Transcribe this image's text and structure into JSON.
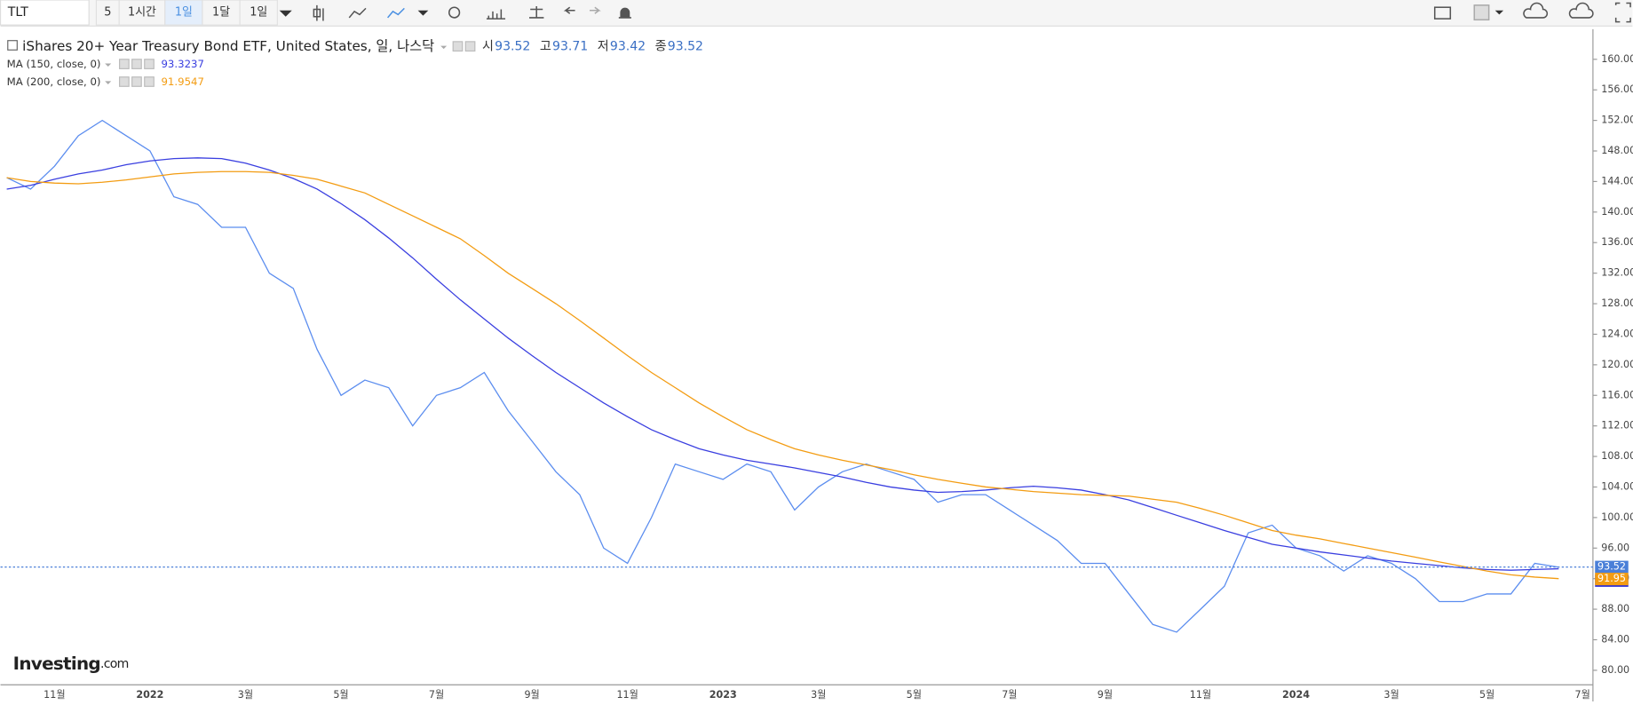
{
  "toolbar": {
    "symbol": "TLT",
    "intervals": [
      "5",
      "1시간",
      "1일",
      "1달",
      "1일"
    ],
    "active_interval": 2
  },
  "logo": {
    "name": "Investing",
    "suffix": ".com"
  },
  "chart_data": {
    "type": "line",
    "title": "iShares 20+ Year Treasury Bond ETF, United States, 일, 나스닥",
    "ohlc": [
      {
        "label": "시",
        "value": 93.52
      },
      {
        "label": "고",
        "value": 93.71
      },
      {
        "label": "저",
        "value": 93.42
      },
      {
        "label": "종",
        "value": 93.52
      }
    ],
    "categories": [
      null,
      null,
      "11월",
      null,
      null,
      null,
      "2022",
      null,
      null,
      null,
      "3월",
      null,
      null,
      null,
      "5월",
      null,
      null,
      null,
      "7월",
      null,
      null,
      null,
      "9월",
      null,
      null,
      null,
      "11월",
      null,
      null,
      null,
      "2023",
      null,
      null,
      null,
      "3월",
      null,
      null,
      null,
      "5월",
      null,
      null,
      null,
      "7월",
      null,
      null,
      null,
      "9월",
      null,
      null,
      null,
      "11월",
      null,
      null,
      null,
      "2024",
      null,
      null,
      null,
      "3월",
      null,
      null,
      null,
      "5월",
      null,
      null,
      null,
      "7월"
    ],
    "series": [
      {
        "color": "#5b8def",
        "values": [
          144.5,
          143,
          146,
          150,
          152,
          150,
          148,
          142,
          141,
          138,
          138,
          132,
          130,
          122,
          116,
          118,
          117,
          112,
          116,
          117,
          119,
          114,
          110,
          106,
          103,
          96,
          94,
          100,
          107,
          106,
          105,
          107,
          106,
          101,
          104,
          106,
          107,
          106,
          105,
          102,
          103,
          103,
          101,
          99,
          97,
          94,
          94,
          90,
          86,
          85,
          88,
          91,
          98,
          99,
          96,
          95,
          93,
          95,
          94,
          92,
          89,
          89,
          90,
          90,
          94,
          93.5,
          null
        ]
      },
      {
        "name": "MA (150, close, 0)",
        "color": "#3a3fe0",
        "last": 93.3237,
        "values": [
          143,
          143.5,
          144.3,
          145,
          145.5,
          146.2,
          146.7,
          147,
          147.1,
          147,
          146.4,
          145.5,
          144.4,
          143,
          141.1,
          139,
          136.6,
          134,
          131.2,
          128.5,
          126,
          123.5,
          121.2,
          119,
          117,
          115,
          113.2,
          111.5,
          110.2,
          109,
          108.2,
          107.5,
          107,
          106.5,
          105.9,
          105.3,
          104.6,
          104,
          103.6,
          103.3,
          103.4,
          103.6,
          103.9,
          104.1,
          103.9,
          103.6,
          103,
          102.3,
          101.3,
          100.3,
          99.3,
          98.3,
          97.4,
          96.5,
          96,
          95.5,
          95.1,
          94.7,
          94.3,
          94,
          93.7,
          93.4,
          93.2,
          93.1,
          93.2,
          93.3,
          null
        ]
      },
      {
        "name": "MA (200, close, 0)",
        "color": "#f39c12",
        "last": 91.9547,
        "values": [
          144.5,
          144,
          143.8,
          143.7,
          143.9,
          144.2,
          144.6,
          145,
          145.2,
          145.3,
          145.3,
          145.2,
          144.8,
          144.3,
          143.4,
          142.5,
          141,
          139.5,
          138,
          136.5,
          134.3,
          132,
          130,
          128,
          125.8,
          123.5,
          121.2,
          119,
          117,
          115,
          113.2,
          111.5,
          110.2,
          109,
          108.2,
          107.5,
          106.9,
          106.3,
          105.6,
          105,
          104.5,
          104,
          103.7,
          103.4,
          103.2,
          103,
          102.9,
          102.8,
          102.4,
          102,
          101.2,
          100.3,
          99.3,
          98.3,
          97.7,
          97.2,
          96.6,
          96,
          95.4,
          94.8,
          94.2,
          93.6,
          93,
          92.5,
          92.2,
          92,
          null
        ]
      }
    ],
    "markers": [
      {
        "value": 93.52,
        "color": "#4a7fd8",
        "line": true
      },
      {
        "value": 93.32,
        "color": "#2b2fd6"
      },
      {
        "value": 91.95,
        "color": "#f39c12"
      }
    ],
    "ylim": [
      78.1,
      163.95
    ],
    "yticks": [
      {
        "value": 80,
        "label": "80.00"
      },
      {
        "value": 84,
        "label": "84.00"
      },
      {
        "value": 88,
        "label": "88.00"
      },
      {
        "value": 92,
        "label": "92.00"
      },
      {
        "value": 96,
        "label": "96.00"
      },
      {
        "value": 100,
        "label": "100.00"
      },
      {
        "value": 104,
        "label": "104.00"
      },
      {
        "value": 108,
        "label": "108.00"
      },
      {
        "value": 112,
        "label": "112.00"
      },
      {
        "value": 116,
        "label": "116.00"
      },
      {
        "value": 120,
        "label": "120.00"
      },
      {
        "value": 124,
        "label": "124.00"
      },
      {
        "value": 128,
        "label": "128.00"
      },
      {
        "value": 132,
        "label": "132.00"
      },
      {
        "value": 136,
        "label": "136.00"
      },
      {
        "value": 140,
        "label": "140.00"
      },
      {
        "value": 144,
        "label": "144.00"
      },
      {
        "value": 148,
        "label": "148.00"
      },
      {
        "value": 152,
        "label": "152.00"
      },
      {
        "value": 156,
        "label": "156.00"
      },
      {
        "value": 160,
        "label": "160.00"
      }
    ],
    "grid": false
  }
}
